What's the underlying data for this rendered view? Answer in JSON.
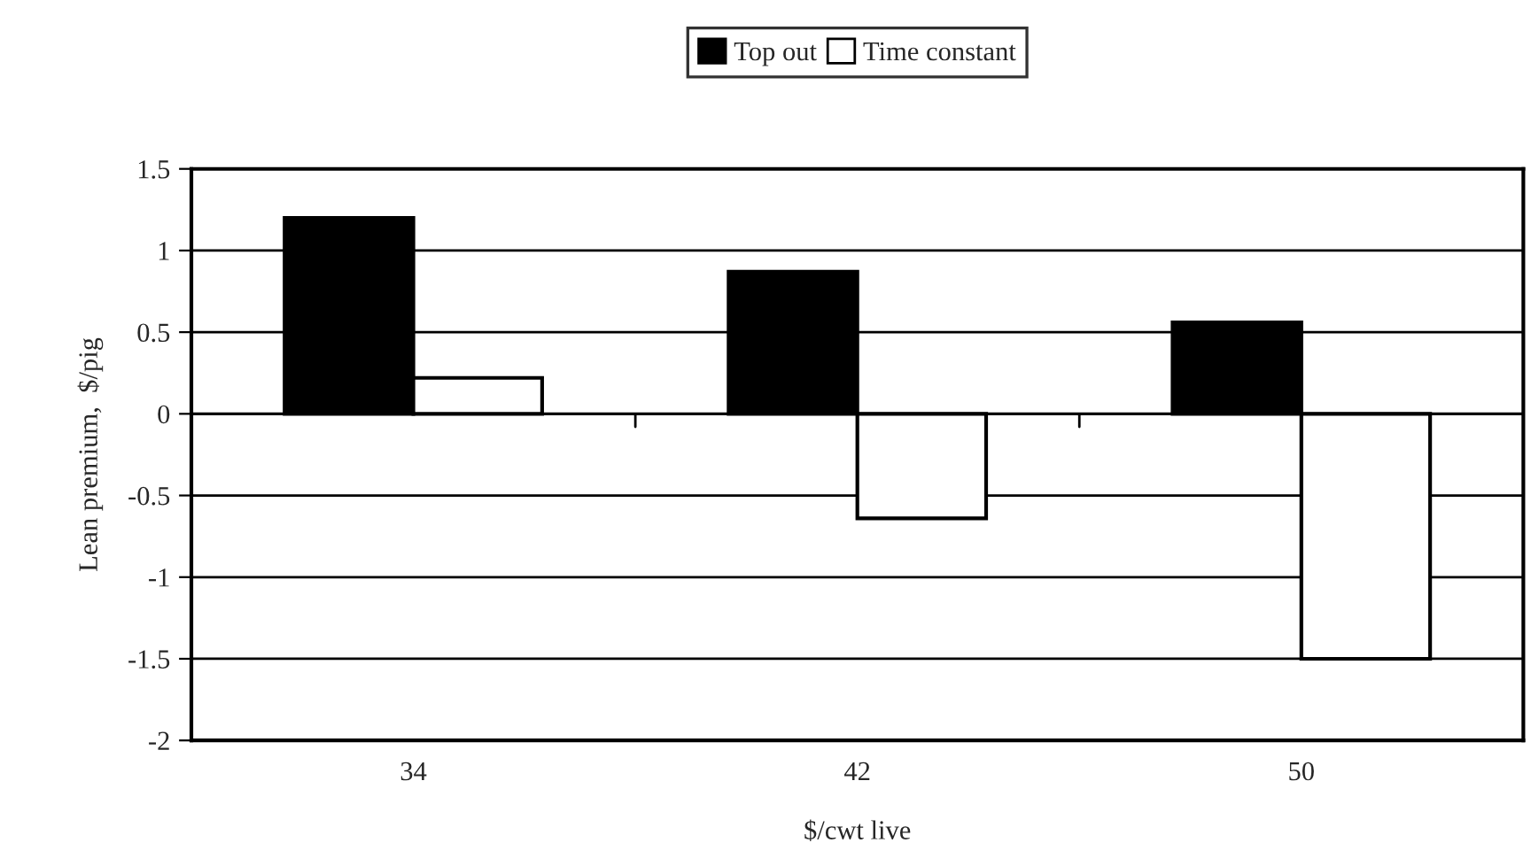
{
  "chart_data": {
    "type": "bar",
    "xlabel": "$/cwt live",
    "ylabel": "Lean premium,  $/pig",
    "categories": [
      "34",
      "42",
      "50"
    ],
    "series": [
      {
        "name": "Top out",
        "color": "#000000",
        "values": [
          1.2,
          0.87,
          0.56
        ]
      },
      {
        "name": "Time constant",
        "color": "#ffffff",
        "values": [
          0.22,
          -0.64,
          -1.5
        ]
      }
    ],
    "ylim": [
      -2,
      1.5
    ],
    "yticks": [
      -2,
      -1.5,
      -1,
      -0.5,
      0,
      0.5,
      1,
      1.5
    ],
    "grid": "y",
    "legend": "top"
  }
}
